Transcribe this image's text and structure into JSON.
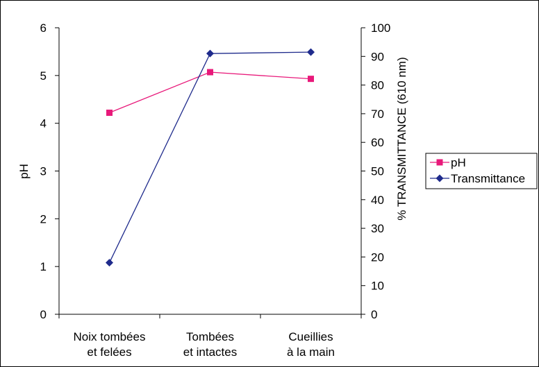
{
  "chart_data": {
    "type": "line",
    "categories": [
      [
        "Noix tombées",
        "et felées"
      ],
      [
        "Tombées",
        "et intactes"
      ],
      [
        "Cueillies",
        "à la main"
      ]
    ],
    "ylabel_left": "pH",
    "ylabel_right": "% TRANSMITTANCE (610 nm)",
    "ylim_left": [
      0,
      6
    ],
    "ylim_right": [
      0,
      100
    ],
    "yticks_left": [
      0,
      1,
      2,
      3,
      4,
      5,
      6
    ],
    "yticks_right": [
      0,
      10,
      20,
      30,
      40,
      50,
      60,
      70,
      80,
      90,
      100
    ],
    "grid": false,
    "legend_position": "right",
    "series": [
      {
        "name": "pH",
        "axis": "left",
        "values": [
          4.22,
          5.07,
          4.93
        ],
        "color": "#e8197a",
        "marker": "square"
      },
      {
        "name": "Transmittance",
        "axis": "right",
        "values": [
          18,
          91,
          91.5
        ],
        "color": "#1f2b8c",
        "marker": "diamond"
      }
    ]
  }
}
